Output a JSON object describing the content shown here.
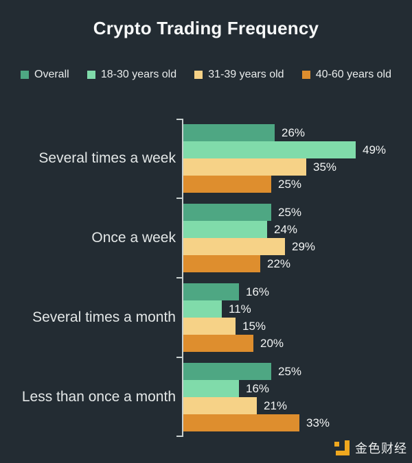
{
  "title": "Crypto Trading Frequency",
  "chart_data": {
    "type": "bar",
    "orientation": "horizontal",
    "title": "Crypto Trading Frequency",
    "categories": [
      "Several times a week",
      "Once a week",
      "Several times a month",
      "Less than once a month"
    ],
    "series": [
      {
        "name": "Overall",
        "color": "#4EA783",
        "values": [
          26,
          25,
          16,
          25
        ]
      },
      {
        "name": "18-30 years old",
        "color": "#80DBAA",
        "values": [
          49,
          24,
          11,
          16
        ]
      },
      {
        "name": "31-39 years old",
        "color": "#F6D287",
        "values": [
          35,
          29,
          15,
          21
        ]
      },
      {
        "name": "40-60 years old",
        "color": "#DE8E2E",
        "values": [
          25,
          22,
          20,
          33
        ]
      }
    ],
    "value_suffix": "%",
    "xmax": 49,
    "grid": false,
    "legend_position": "top",
    "data_labels": true
  },
  "colors": {
    "background": "#232C33",
    "axis": "#C9D1D0",
    "brand_orange": "#F0A81F"
  },
  "branding": {
    "logo_text": "金色财经"
  }
}
